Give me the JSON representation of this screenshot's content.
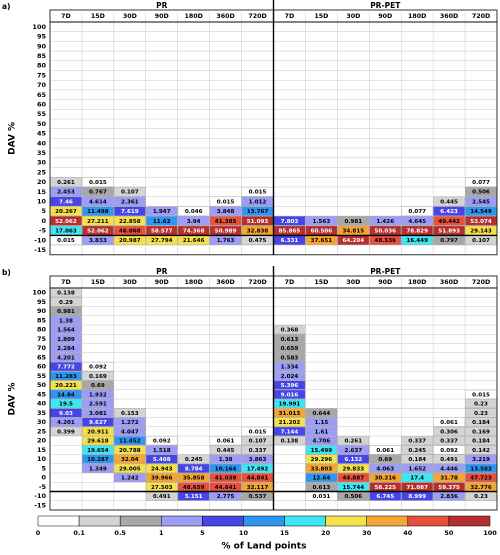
{
  "chart_data": [
    {
      "type": "heatmap",
      "label": "a)",
      "groups": [
        "PR",
        "PR-PET"
      ],
      "columns": [
        "7D",
        "15D",
        "30D",
        "90D",
        "180D",
        "360D",
        "720D"
      ],
      "ylabel": "DAV %",
      "yticks": [
        100,
        95,
        90,
        85,
        80,
        75,
        70,
        65,
        60,
        55,
        50,
        45,
        40,
        35,
        30,
        25,
        20,
        15,
        10,
        5,
        0,
        -5,
        -10,
        -15
      ],
      "values": [
        [
          null,
          null,
          null,
          null,
          null,
          null,
          null,
          null,
          null,
          null,
          null,
          null,
          null,
          null
        ],
        [
          null,
          null,
          null,
          null,
          null,
          null,
          null,
          null,
          null,
          null,
          null,
          null,
          null,
          null
        ],
        [
          null,
          null,
          null,
          null,
          null,
          null,
          null,
          null,
          null,
          null,
          null,
          null,
          null,
          null
        ],
        [
          null,
          null,
          null,
          null,
          null,
          null,
          null,
          null,
          null,
          null,
          null,
          null,
          null,
          null
        ],
        [
          null,
          null,
          null,
          null,
          null,
          null,
          null,
          null,
          null,
          null,
          null,
          null,
          null,
          null
        ],
        [
          null,
          null,
          null,
          null,
          null,
          null,
          null,
          null,
          null,
          null,
          null,
          null,
          null,
          null
        ],
        [
          null,
          null,
          null,
          null,
          null,
          null,
          null,
          null,
          null,
          null,
          null,
          null,
          null,
          null
        ],
        [
          null,
          null,
          null,
          null,
          null,
          null,
          null,
          null,
          null,
          null,
          null,
          null,
          null,
          null
        ],
        [
          null,
          null,
          null,
          null,
          null,
          null,
          null,
          null,
          null,
          null,
          null,
          null,
          null,
          null
        ],
        [
          null,
          null,
          null,
          null,
          null,
          null,
          null,
          null,
          null,
          null,
          null,
          null,
          null,
          null
        ],
        [
          null,
          null,
          null,
          null,
          null,
          null,
          null,
          null,
          null,
          null,
          null,
          null,
          null,
          null
        ],
        [
          null,
          null,
          null,
          null,
          null,
          null,
          null,
          null,
          null,
          null,
          null,
          null,
          null,
          null
        ],
        [
          null,
          null,
          null,
          null,
          null,
          null,
          null,
          null,
          null,
          null,
          null,
          null,
          null,
          null
        ],
        [
          null,
          null,
          null,
          null,
          null,
          null,
          null,
          null,
          null,
          null,
          null,
          null,
          null,
          null
        ],
        [
          null,
          null,
          null,
          null,
          null,
          null,
          null,
          null,
          null,
          null,
          null,
          null,
          null,
          null
        ],
        [
          null,
          null,
          null,
          null,
          null,
          null,
          null,
          null,
          null,
          null,
          null,
          null,
          null,
          null
        ],
        [
          0.261,
          0.015,
          null,
          null,
          null,
          null,
          null,
          null,
          null,
          null,
          null,
          null,
          null,
          0.077
        ],
        [
          2.453,
          0.767,
          0.107,
          null,
          null,
          null,
          0.015,
          null,
          null,
          null,
          null,
          null,
          null,
          0.506
        ],
        [
          7.46,
          4.614,
          2.361,
          null,
          null,
          0.015,
          1.012,
          null,
          null,
          null,
          null,
          null,
          0.445,
          2.545
        ],
        [
          20.267,
          11.498,
          7.619,
          1.947,
          0.046,
          3.848,
          13.767,
          null,
          null,
          null,
          null,
          0.077,
          6.423,
          14.549
        ],
        [
          52.062,
          27.211,
          22.858,
          11.62,
          3.94,
          41.385,
          51.093,
          7.803,
          1.563,
          0.981,
          1.426,
          4.645,
          40.442,
          53.074
        ],
        [
          17.063,
          52.062,
          46.068,
          58.577,
          74.368,
          50.989,
          32.838,
          85.865,
          60.506,
          34.815,
          50.036,
          78.829,
          51.893,
          29.143
        ],
        [
          0.015,
          3.833,
          20.987,
          27.794,
          21.646,
          1.763,
          0.475,
          6.331,
          37.651,
          64.204,
          48.536,
          16.449,
          0.797,
          0.107
        ],
        [
          null,
          null,
          null,
          null,
          null,
          null,
          null,
          null,
          null,
          null,
          null,
          null,
          null,
          null
        ]
      ]
    },
    {
      "type": "heatmap",
      "label": "b)",
      "groups": [
        "PR",
        "PR-PET"
      ],
      "columns": [
        "7D",
        "15D",
        "30D",
        "90D",
        "180D",
        "360D",
        "720D"
      ],
      "ylabel": "DAV %",
      "yticks": [
        100,
        95,
        90,
        85,
        80,
        75,
        70,
        65,
        60,
        55,
        50,
        45,
        40,
        35,
        30,
        25,
        20,
        15,
        10,
        5,
        0,
        -5,
        -10,
        -15
      ],
      "values": [
        [
          0.138,
          null,
          null,
          null,
          null,
          null,
          null,
          null,
          null,
          null,
          null,
          null,
          null,
          null
        ],
        [
          0.29,
          null,
          null,
          null,
          null,
          null,
          null,
          null,
          null,
          null,
          null,
          null,
          null,
          null
        ],
        [
          0.981,
          null,
          null,
          null,
          null,
          null,
          null,
          null,
          null,
          null,
          null,
          null,
          null,
          null
        ],
        [
          1.38,
          null,
          null,
          null,
          null,
          null,
          null,
          null,
          null,
          null,
          null,
          null,
          null,
          null
        ],
        [
          1.564,
          null,
          null,
          null,
          null,
          null,
          null,
          0.368,
          null,
          null,
          null,
          null,
          null,
          null
        ],
        [
          1.809,
          null,
          null,
          null,
          null,
          null,
          null,
          0.613,
          null,
          null,
          null,
          null,
          null,
          null
        ],
        [
          2.284,
          null,
          null,
          null,
          null,
          null,
          null,
          0.659,
          null,
          null,
          null,
          null,
          null,
          null
        ],
        [
          4.201,
          null,
          null,
          null,
          null,
          null,
          null,
          0.583,
          null,
          null,
          null,
          null,
          null,
          null
        ],
        [
          7.772,
          0.092,
          null,
          null,
          null,
          null,
          null,
          1.334,
          null,
          null,
          null,
          null,
          null,
          null
        ],
        [
          11.283,
          0.169,
          null,
          null,
          null,
          null,
          null,
          2.024,
          null,
          null,
          null,
          null,
          null,
          null
        ],
        [
          20.221,
          0.69,
          null,
          null,
          null,
          null,
          null,
          5.396,
          null,
          null,
          null,
          null,
          null,
          null
        ],
        [
          14.84,
          1.932,
          null,
          null,
          null,
          null,
          null,
          9.016,
          null,
          null,
          null,
          null,
          null,
          0.015
        ],
        [
          19.5,
          2.591,
          null,
          null,
          null,
          null,
          null,
          19.991,
          null,
          null,
          null,
          null,
          null,
          0.23
        ],
        [
          9.03,
          3.081,
          0.153,
          null,
          null,
          null,
          null,
          31.013,
          0.644,
          null,
          null,
          null,
          null,
          0.23
        ],
        [
          4.201,
          9.627,
          1.272,
          null,
          null,
          null,
          null,
          21.202,
          1.15,
          null,
          null,
          null,
          0.061,
          0.184
        ],
        [
          0.399,
          20.911,
          4.047,
          null,
          null,
          null,
          0.015,
          7.144,
          1.61,
          null,
          null,
          null,
          0.306,
          0.169
        ],
        [
          null,
          29.618,
          11.452,
          0.092,
          null,
          0.061,
          0.107,
          0.138,
          4.706,
          0.261,
          null,
          0.337,
          0.337,
          0.184
        ],
        [
          null,
          19.654,
          20.788,
          1.518,
          null,
          0.445,
          0.337,
          null,
          15.499,
          2.637,
          0.061,
          0.245,
          0.092,
          0.142
        ],
        [
          null,
          10.287,
          32.04,
          5.408,
          0.245,
          1.38,
          3.863,
          null,
          29.296,
          6.132,
          0.69,
          0.184,
          0.491,
          3.219
        ],
        [
          null,
          1.349,
          29.005,
          24.943,
          8.784,
          10.164,
          17.492,
          null,
          33.803,
          29.833,
          4.063,
          1.652,
          4.446,
          13.583
        ],
        [
          null,
          null,
          1.242,
          39.966,
          35.858,
          41.039,
          44.841,
          null,
          12.64,
          44.887,
          30.216,
          17.4,
          31.78,
          47.723
        ],
        [
          null,
          null,
          null,
          27.503,
          48.659,
          44.641,
          32.117,
          null,
          0.613,
          15.744,
          58.225,
          71.087,
          59.375,
          32.776
        ],
        [
          null,
          null,
          null,
          0.491,
          5.151,
          2.775,
          0.537,
          null,
          0.031,
          0.506,
          6.745,
          8.999,
          2.836,
          0.23
        ],
        [
          null,
          null,
          null,
          null,
          null,
          null,
          null,
          null,
          null,
          null,
          null,
          null,
          null,
          null
        ]
      ]
    }
  ],
  "colorbar": {
    "bounds": [
      0,
      0.1,
      0.5,
      1,
      5,
      10,
      15,
      20,
      30,
      40,
      50,
      100
    ],
    "colors": [
      "#ffffff",
      "#d4d4d4",
      "#a8a8a8",
      "#9d9df5",
      "#4646e6",
      "#2e96f0",
      "#3fe6f2",
      "#f5e14c",
      "#f5a632",
      "#e6503c",
      "#b52f2f"
    ],
    "label": "% of Land points"
  }
}
